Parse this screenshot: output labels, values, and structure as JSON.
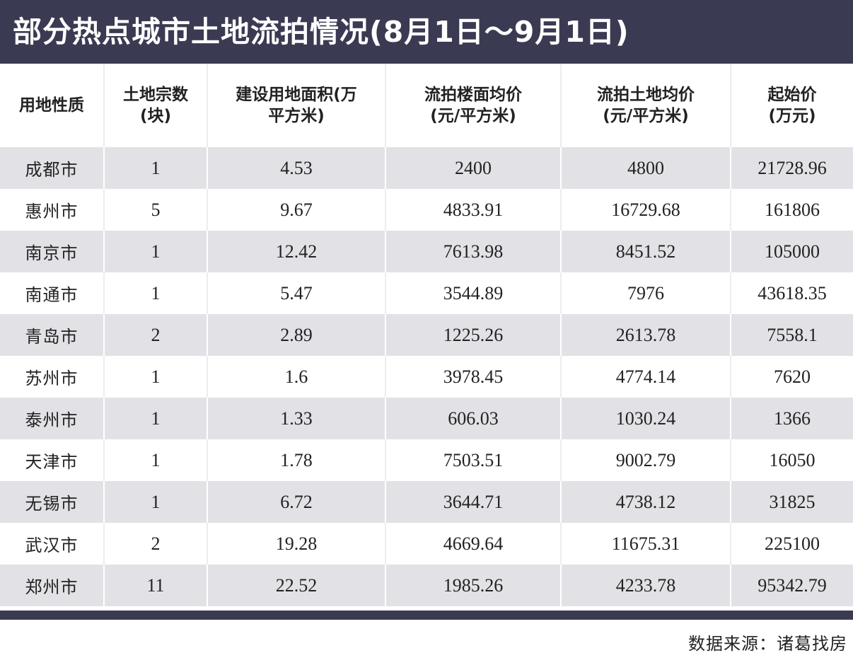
{
  "title": "部分热点城市土地流拍情况(8月1日～9月1日)",
  "headers": [
    "用地性质",
    "土地宗数\n(块)",
    "建设用地面积(万\n平方米)",
    "流拍楼面均价\n(元/平方米)",
    "流拍土地均价\n(元/平方米)",
    "起始价\n(万元)"
  ],
  "rows": [
    [
      "成都市",
      "1",
      "4.53",
      "2400",
      "4800",
      "21728.96"
    ],
    [
      "惠州市",
      "5",
      "9.67",
      "4833.91",
      "16729.68",
      "161806"
    ],
    [
      "南京市",
      "1",
      "12.42",
      "7613.98",
      "8451.52",
      "105000"
    ],
    [
      "南通市",
      "1",
      "5.47",
      "3544.89",
      "7976",
      "43618.35"
    ],
    [
      "青岛市",
      "2",
      "2.89",
      "1225.26",
      "2613.78",
      "7558.1"
    ],
    [
      "苏州市",
      "1",
      "1.6",
      "3978.45",
      "4774.14",
      "7620"
    ],
    [
      "泰州市",
      "1",
      "1.33",
      "606.03",
      "1030.24",
      "1366"
    ],
    [
      "天津市",
      "1",
      "1.78",
      "7503.51",
      "9002.79",
      "16050"
    ],
    [
      "无锡市",
      "1",
      "6.72",
      "3644.71",
      "4738.12",
      "31825"
    ],
    [
      "武汉市",
      "2",
      "19.28",
      "4669.64",
      "11675.31",
      "225100"
    ],
    [
      "郑州市",
      "11",
      "22.52",
      "1985.26",
      "4233.78",
      "95342.79"
    ]
  ],
  "source": "数据来源：诸葛找房",
  "colors": {
    "title_bg": "#3a3a52",
    "stripe": "#e2e2e6"
  }
}
